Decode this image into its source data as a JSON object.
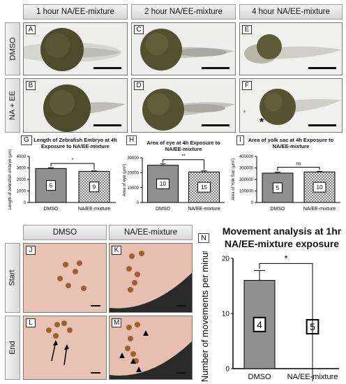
{
  "top_section": {
    "col_headers": [
      "1 hour NA/EE-mixture",
      "2 hour NA/EE-mixture",
      "4 hour NA/EE-mixture"
    ],
    "row_headers": [
      "DMSO",
      "NA + EE"
    ],
    "panel_labels": [
      "A",
      "C",
      "E",
      "B",
      "D",
      "F"
    ],
    "f_markers": {
      "gray": "*",
      "black": "*"
    }
  },
  "chart_data": [
    {
      "panel": "G",
      "type": "bar",
      "title": "Length of Zebrafish Embryo at 4h Exposure to NA/EE-mixture",
      "ylabel": "Length of zebrafish embryo (µm)",
      "categories": [
        "DMSO",
        "NA/EE-mixture"
      ],
      "values": [
        2950,
        2700
      ],
      "errors": [
        70,
        40
      ],
      "n": [
        "5",
        "9"
      ],
      "ylim": [
        0,
        4000
      ],
      "yticks": [
        "0",
        "1000",
        "2000",
        "3000",
        "4000"
      ],
      "significance": "*"
    },
    {
      "panel": "H",
      "type": "bar",
      "title": "Area of eye at 4h Exposure to NA/EE-mixture",
      "ylabel": "Area of eye (µm²)",
      "categories": [
        "DMSO",
        "NA/EE-mixture"
      ],
      "values": [
        25000,
        20500
      ],
      "errors": [
        900,
        700
      ],
      "n": [
        "10",
        "15"
      ],
      "ylim": [
        0,
        30000
      ],
      "yticks": [
        "0",
        "10000",
        "20000",
        "30000"
      ],
      "significance": "**"
    },
    {
      "panel": "I",
      "type": "bar",
      "title": "Area of yolk sac at 4h Exposure to NA/EE-mixture",
      "ylabel": "Area of Yolk Sac (µm²)",
      "categories": [
        "DMSO",
        "NA/EE-mixture"
      ],
      "values": [
        255000,
        265000
      ],
      "errors": [
        8000,
        5000
      ],
      "n": [
        "5",
        "10"
      ],
      "ylim": [
        0,
        400000
      ],
      "yticks": [
        "0",
        "100000",
        "200000",
        "300000",
        "400000"
      ],
      "significance": "ns"
    },
    {
      "panel": "N",
      "type": "bar",
      "title": "Movement analysis at 1hr NA/EE-mixture exposure",
      "ylabel": "Number of movements per minute",
      "categories": [
        "DMSO",
        "NA/EE-mixture"
      ],
      "values": [
        16,
        0
      ],
      "errors": [
        1.8,
        0
      ],
      "n": [
        "4",
        "5"
      ],
      "ylim": [
        0,
        20
      ],
      "yticks": [
        "0",
        "10",
        "20"
      ],
      "significance": "*"
    }
  ],
  "bottom_section": {
    "col_headers": [
      "DMSO",
      "NA/EE-mixture"
    ],
    "row_headers": [
      "Start",
      "End"
    ],
    "panel_labels": [
      "J",
      "K",
      "L",
      "M"
    ],
    "n_label": "N"
  }
}
